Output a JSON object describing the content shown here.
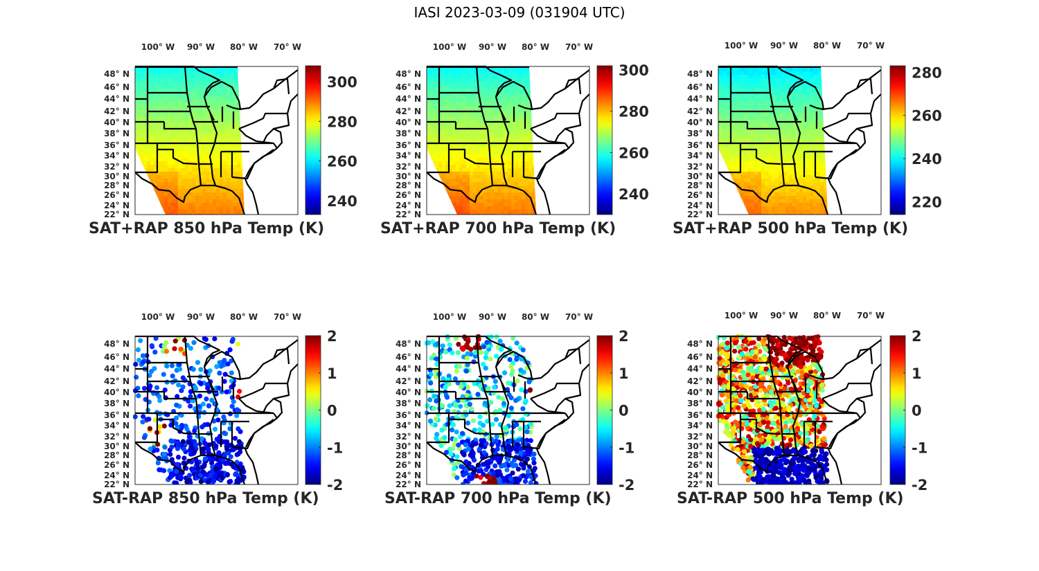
{
  "figure": {
    "title": "IASI 2023-03-09 (031904 UTC)"
  },
  "map_axes": {
    "lon_ticks": [
      "100° W",
      "90° W",
      "80° W",
      "70° W"
    ],
    "lat_ticks": [
      "48° N",
      "46° N",
      "44° N",
      "42° N",
      "40° N",
      "38° N",
      "36° N",
      "34° N",
      "32° N",
      "30° N",
      "28° N",
      "26° N",
      "24° N",
      "22° N"
    ],
    "lon_values": [
      -100,
      -90,
      -80,
      -70
    ],
    "lat_values": [
      48,
      46,
      44,
      42,
      40,
      38,
      36,
      34,
      32,
      30,
      28,
      26,
      24,
      22
    ]
  },
  "chart_data": [
    {
      "type": "heatmap",
      "title": "SAT+RAP 850 hPa Temp (K)",
      "field": "temperature",
      "units": "K",
      "colormap": "jet",
      "clim": [
        233,
        308
      ],
      "colorbar_ticks": [
        300,
        280,
        260,
        240
      ],
      "colorbar_tick_labels": [
        "300",
        "280",
        "260",
        "240"
      ],
      "description": "North cold (~262 K) to south warm (~290 K); swath over central/eastern US and Gulf",
      "regional_values": {
        "north": 262,
        "central": 275,
        "south": 290
      }
    },
    {
      "type": "heatmap",
      "title": "SAT+RAP 700 hPa Temp (K)",
      "field": "temperature",
      "units": "K",
      "colormap": "jet",
      "clim": [
        230,
        302
      ],
      "colorbar_ticks": [
        300,
        280,
        260,
        240
      ],
      "colorbar_tick_labels": [
        "300",
        "280",
        "260",
        "240"
      ],
      "description": "North ~257 K to south ~285 K",
      "regional_values": {
        "north": 257,
        "central": 270,
        "south": 285
      }
    },
    {
      "type": "heatmap",
      "title": "SAT+RAP 500 hPa Temp (K)",
      "field": "temperature",
      "units": "K",
      "colormap": "jet",
      "clim": [
        214,
        283
      ],
      "colorbar_ticks": [
        280,
        260,
        240,
        220
      ],
      "colorbar_tick_labels": [
        "280",
        "260",
        "240",
        "220"
      ],
      "description": "North ~238 K to south ~265 K",
      "regional_values": {
        "north": 238,
        "central": 252,
        "south": 265
      }
    },
    {
      "type": "scatter",
      "title": "SAT-RAP 850 hPa Temp (K)",
      "field": "temperature difference",
      "units": "K",
      "colormap": "jet",
      "clim": [
        -2,
        2
      ],
      "colorbar_ticks": [
        2,
        1,
        0,
        -1,
        -2
      ],
      "colorbar_tick_labels": [
        "2",
        "1",
        "0",
        "-1",
        "-2"
      ],
      "description": "Mostly strongly negative (~-2 K) over Gulf and south; scattered positive (~+2 K) in Dakotas, Michigan, Ohio, and western Texas",
      "regional_values": {
        "gulf": -2,
        "north_plains": 1.5,
        "west_texas": 0.8,
        "ohio_michigan": 2
      }
    },
    {
      "type": "scatter",
      "title": "SAT-RAP 700 hPa Temp (K)",
      "field": "temperature difference",
      "units": "K",
      "colormap": "jet",
      "clim": [
        -2,
        2
      ],
      "colorbar_ticks": [
        2,
        1,
        0,
        -1,
        -2
      ],
      "colorbar_tick_labels": [
        "2",
        "1",
        "0",
        "-1",
        "-2"
      ],
      "description": "Mostly negative (~-1.5 to -2 K) over Gulf; positive near North Dakota, Ohio, and southern edge",
      "regional_values": {
        "gulf": -1.8,
        "north_plains": 1.8,
        "ohio": 2,
        "south_edge": 1.8
      }
    },
    {
      "type": "scatter",
      "title": "SAT-RAP 500 hPa Temp (K)",
      "field": "temperature difference",
      "units": "K",
      "colormap": "jet",
      "clim": [
        -2,
        2
      ],
      "colorbar_ticks": [
        2,
        1,
        0,
        -1,
        -2
      ],
      "colorbar_tick_labels": [
        "2",
        "1",
        "0",
        "-1",
        "-2"
      ],
      "description": "Strongly positive (~+2 K) across northern plains and upper Midwest; strongly negative (~-2 K) over Gulf of Mexico; mixed elsewhere",
      "regional_values": {
        "gulf": -2,
        "north": 1.8,
        "midwest": 1.2,
        "southeast": 1
      }
    }
  ]
}
